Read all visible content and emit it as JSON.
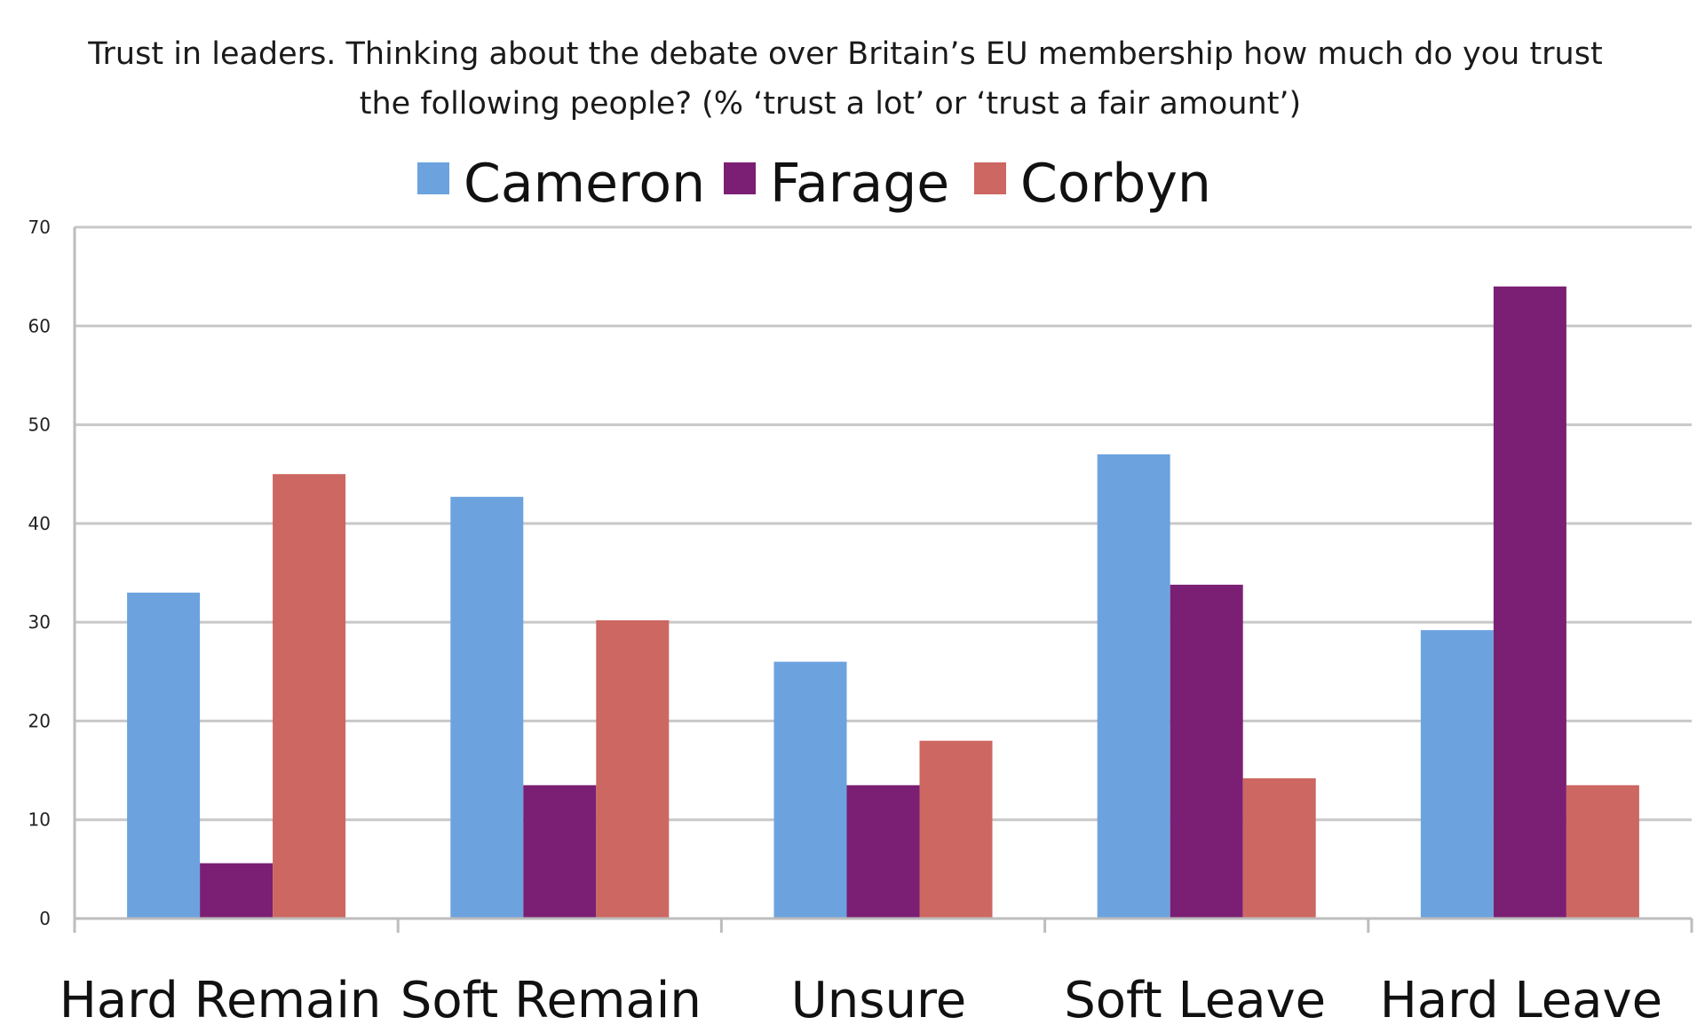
{
  "chart_data": {
    "type": "bar",
    "title": "Trust in leaders. Thinking about the debate over Britain’s EU membership how much do you trust the following people? (% ‘trust a lot’ or ‘trust a fair amount’)",
    "title_lines": [
      "Trust in leaders. Thinking about the debate over Britain’s EU membership how much do you trust",
      "the following people? (% ‘trust a lot’ or ‘trust a fair amount’)"
    ],
    "categories": [
      "Hard Remain",
      "Soft Remain",
      "Unsure",
      "Soft Leave",
      "Hard Leave"
    ],
    "series": [
      {
        "name": "Cameron",
        "color": "#6ca3df",
        "values": [
          33,
          42.7,
          26,
          47,
          29.2
        ]
      },
      {
        "name": "Farage",
        "color": "#7b1f74",
        "values": [
          5.6,
          13.5,
          13.5,
          33.8,
          64
        ]
      },
      {
        "name": "Corbyn",
        "color": "#cd6761",
        "values": [
          45,
          30.2,
          18,
          14.2,
          13.5
        ]
      }
    ],
    "xlabel": "",
    "ylabel": "",
    "ylim": [
      0,
      70
    ],
    "yticks": [
      0,
      10,
      20,
      30,
      40,
      50,
      60,
      70
    ],
    "grid": true,
    "legend_position": "top-center"
  }
}
